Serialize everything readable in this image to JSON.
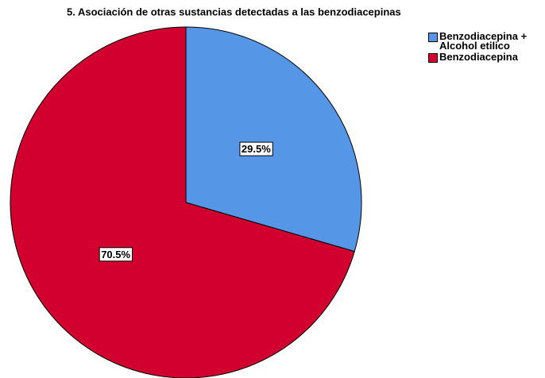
{
  "chart_data": {
    "type": "pie",
    "title": "5.  Asociación de otras sustancias detectadas a las benzodiacepinas",
    "categories": [
      "Benzodiacepina + Alcohol etilico",
      "Benzodiacepina"
    ],
    "values": [
      29.5,
      70.5
    ],
    "value_labels": [
      "29.5%",
      "70.5%"
    ],
    "colors": [
      "#5596e6",
      "#d2002e"
    ],
    "legend": "top-right"
  }
}
